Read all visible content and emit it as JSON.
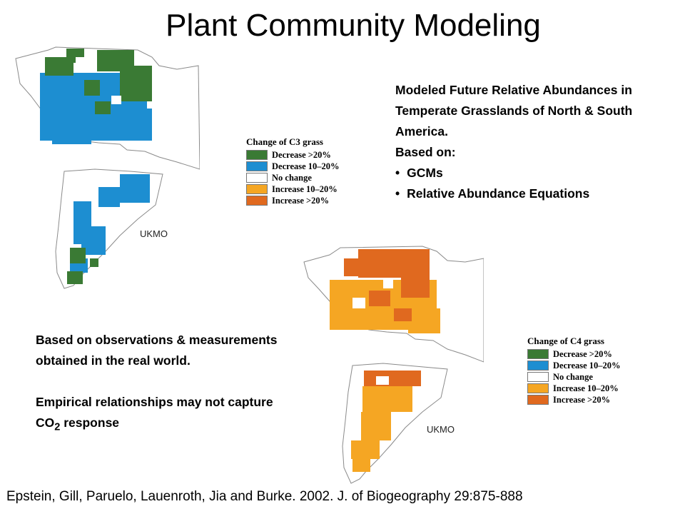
{
  "title": "Plant Community Modeling",
  "colors": {
    "decrease_gt20": "#3a7a34",
    "decrease_10_20": "#1d8ed1",
    "no_change": "#ffffff",
    "increase_10_20": "#f5a623",
    "increase_gt20": "#e0691f",
    "outline": "#8a8a8a"
  },
  "maps": [
    {
      "legend_title": "Change of C3  grass",
      "legend_items": [
        "Decrease >20%",
        "Decrease 10–20%",
        "No change",
        "Increase 10–20%",
        "Increase >20%"
      ],
      "model": "UKMO"
    },
    {
      "legend_title": "Change of C4  grass",
      "legend_items": [
        "Decrease >20%",
        "Decrease 10–20%",
        "No change",
        "Increase 10–20%",
        "Increase >20%"
      ],
      "model": "UKMO"
    }
  ],
  "description": {
    "heading": "Modeled Future Relative Abundances in Temperate Grasslands of North & South America.",
    "based_on": "Based on:",
    "bullets": [
      "GCMs",
      "Relative Abundance  Equations"
    ]
  },
  "note": {
    "line1": "Based on observations & measurements obtained in the real world.",
    "line2_prefix": "Empirical relationships may not capture CO",
    "line2_sub": "2",
    "line2_suffix": " response"
  },
  "citation": "Epstein, Gill, Paruelo, Lauenroth, Jia and Burke.  2002.  J. of  Biogeography 29:875-888"
}
